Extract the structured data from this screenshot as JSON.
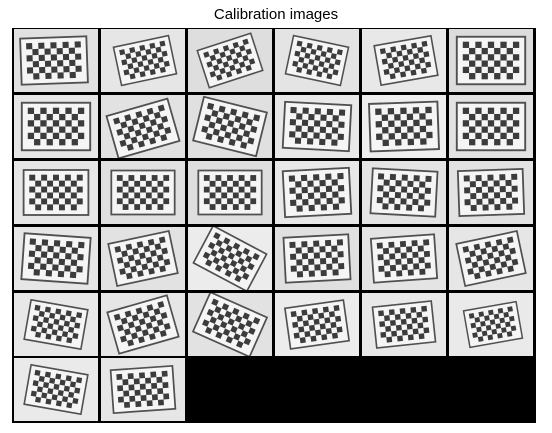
{
  "title": "Calibration images",
  "montage": {
    "columns": 6,
    "rows": 6,
    "image_count": 32,
    "background": "#000000",
    "board": {
      "squares_x": 9,
      "squares_y": 6,
      "dark": "#3c3c3c",
      "light": "#f5f5f5"
    }
  }
}
